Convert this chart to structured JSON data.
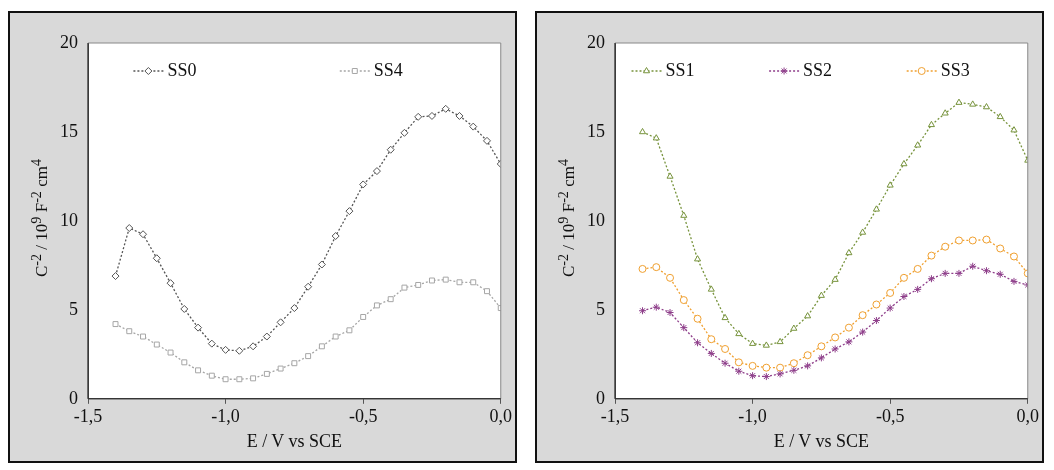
{
  "chart_data": [
    {
      "type": "line",
      "xlabel": "E / V vs SCE",
      "ylabel": "C$^{-2}$ / 10$^{9}$ F$^{-2}$ cm$^{4}$",
      "x": [
        -1.4,
        -1.35,
        -1.3,
        -1.25,
        -1.2,
        -1.15,
        -1.1,
        -1.05,
        -1.0,
        -0.95,
        -0.9,
        -0.85,
        -0.8,
        -0.75,
        -0.7,
        -0.65,
        -0.6,
        -0.55,
        -0.5,
        -0.45,
        -0.4,
        -0.35,
        -0.3,
        -0.25,
        -0.2,
        -0.15,
        -0.1,
        -0.05,
        0
      ],
      "series": [
        {
          "name": "SS0",
          "color": "#555555",
          "marker": "diamond",
          "values": [
            6.9,
            9.6,
            9.25,
            7.9,
            6.5,
            5.05,
            4.0,
            3.1,
            2.75,
            2.7,
            2.95,
            3.5,
            4.3,
            5.1,
            6.3,
            7.55,
            9.15,
            10.55,
            12.05,
            12.8,
            14.0,
            14.95,
            15.85,
            15.9,
            16.3,
            15.9,
            15.3,
            14.5,
            13.2
          ]
        },
        {
          "name": "SS4",
          "color": "#a6a6a6",
          "marker": "square",
          "values": [
            4.2,
            3.8,
            3.5,
            3.05,
            2.6,
            2.05,
            1.6,
            1.3,
            1.1,
            1.1,
            1.15,
            1.4,
            1.7,
            2.0,
            2.4,
            2.95,
            3.5,
            3.85,
            4.6,
            5.25,
            5.6,
            6.25,
            6.4,
            6.65,
            6.7,
            6.55,
            6.55,
            6.05,
            5.1
          ]
        }
      ],
      "xlim": [
        -1.5,
        0
      ],
      "xticks": [
        {
          "value": -1.5,
          "label": "-1,5"
        },
        {
          "value": -1.0,
          "label": "-1,0"
        },
        {
          "value": -0.5,
          "label": "-0,5"
        },
        {
          "value": 0,
          "label": "0,0"
        }
      ],
      "ylim": [
        0,
        20
      ],
      "yticks": [
        0,
        5,
        10,
        15,
        20
      ],
      "grid": false,
      "legend": "top",
      "line_style": "dotted"
    },
    {
      "type": "line",
      "xlabel": "E / V vs SCE",
      "ylabel": "C$^{-2}$ / 10$^{9}$ F$^{-2}$ cm$^{4}$",
      "x": [
        -1.4,
        -1.35,
        -1.3,
        -1.25,
        -1.2,
        -1.15,
        -1.1,
        -1.05,
        -1.0,
        -0.95,
        -0.9,
        -0.85,
        -0.8,
        -0.75,
        -0.7,
        -0.65,
        -0.6,
        -0.55,
        -0.5,
        -0.45,
        -0.4,
        -0.35,
        -0.3,
        -0.25,
        -0.2,
        -0.15,
        -0.1,
        -0.05,
        0
      ],
      "series": [
        {
          "name": "SS1",
          "color": "#77933c",
          "marker": "triangle",
          "values": [
            15.0,
            14.65,
            12.5,
            10.3,
            7.85,
            6.15,
            4.55,
            3.65,
            3.1,
            3.0,
            3.2,
            3.95,
            4.65,
            5.8,
            6.7,
            8.2,
            9.35,
            10.65,
            12.0,
            13.2,
            14.25,
            15.4,
            16.05,
            16.65,
            16.55,
            16.4,
            15.85,
            15.1,
            13.4
          ]
        },
        {
          "name": "SS2",
          "color": "#8e3e8a",
          "marker": "cross",
          "values": [
            4.95,
            5.15,
            4.85,
            4.0,
            3.15,
            2.55,
            2.0,
            1.55,
            1.3,
            1.25,
            1.4,
            1.6,
            1.85,
            2.3,
            2.8,
            3.2,
            3.75,
            4.4,
            5.1,
            5.75,
            6.15,
            6.75,
            7.05,
            7.05,
            7.45,
            7.2,
            7.0,
            6.6,
            6.4
          ]
        },
        {
          "name": "SS3",
          "color": "#f0a030",
          "marker": "circle",
          "values": [
            7.3,
            7.4,
            6.8,
            5.55,
            4.5,
            3.35,
            2.8,
            2.05,
            1.85,
            1.75,
            1.75,
            2.0,
            2.45,
            2.95,
            3.45,
            4.0,
            4.7,
            5.3,
            5.95,
            6.8,
            7.3,
            8.05,
            8.55,
            8.9,
            8.9,
            8.95,
            8.45,
            8.0,
            7.05
          ]
        }
      ],
      "xlim": [
        -1.5,
        0
      ],
      "xticks": [
        {
          "value": -1.5,
          "label": "-1,5"
        },
        {
          "value": -1.0,
          "label": "-1,0"
        },
        {
          "value": -0.5,
          "label": "-0,5"
        },
        {
          "value": 0,
          "label": "0,0"
        }
      ],
      "ylim": [
        0,
        20
      ],
      "yticks": [
        0,
        5,
        10,
        15,
        20
      ],
      "grid": false,
      "legend": "top",
      "line_style": "dotted"
    }
  ]
}
